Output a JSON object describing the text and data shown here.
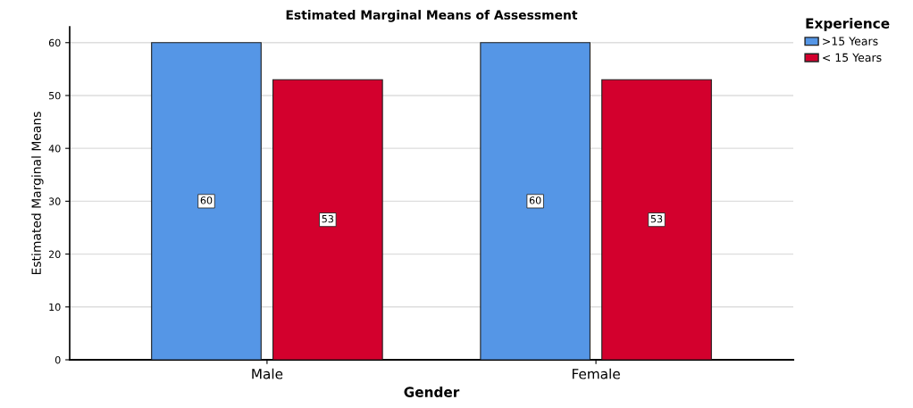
{
  "chart_data": {
    "type": "bar",
    "title": "Estimated Marginal Means of Assessment",
    "xlabel": "Gender",
    "ylabel": "Estimated Marginal Means",
    "legend_title": "Experience",
    "categories": [
      "Male",
      "Female"
    ],
    "series": [
      {
        "name": ">15 Years",
        "color": "#5596e6",
        "values": [
          60,
          60
        ]
      },
      {
        "name": "< 15 Years",
        "color": "#d3002d",
        "values": [
          53,
          53
        ]
      }
    ],
    "ylim": [
      0,
      63
    ],
    "yticks": [
      0,
      10,
      20,
      30,
      40,
      50,
      60
    ],
    "grid": "y",
    "legend": "top right",
    "data_labels": true
  }
}
